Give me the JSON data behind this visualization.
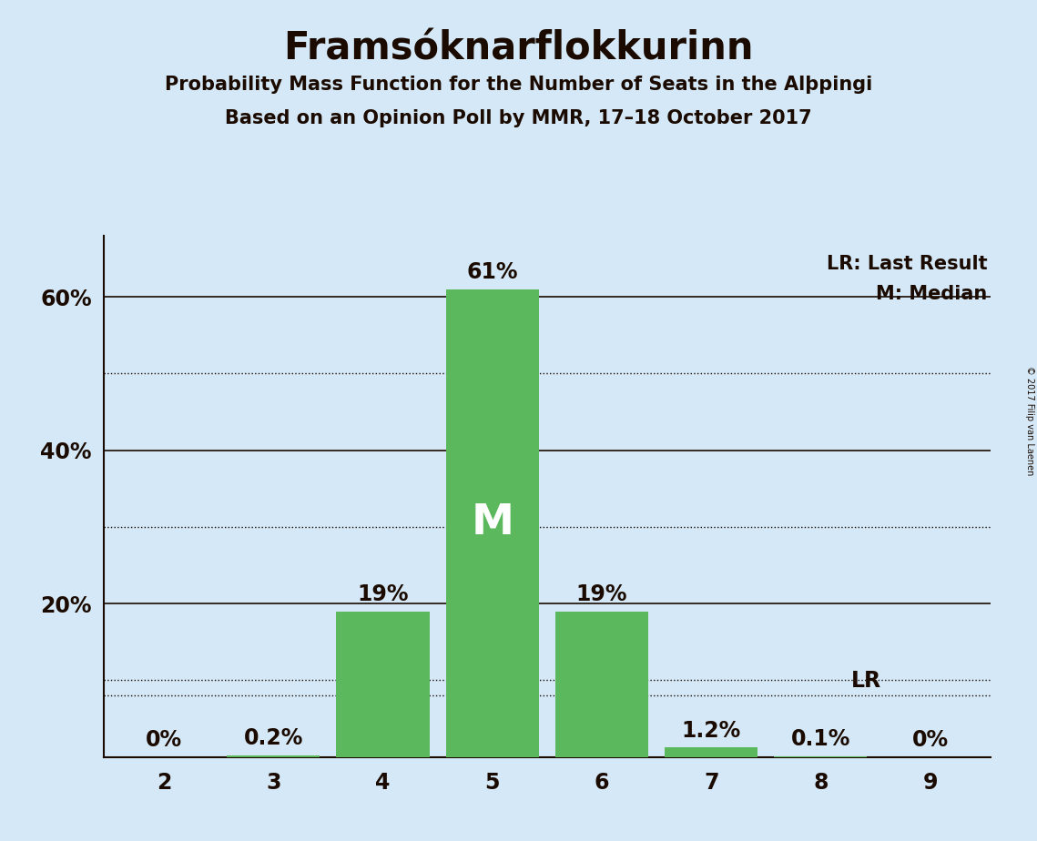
{
  "title": "Framsóknarflokkurinn",
  "subtitle1": "Probability Mass Function for the Number of Seats in the Alþpingi",
  "subtitle2": "Based on an Opinion Poll by MMR, 17–18 October 2017",
  "copyright": "© 2017 Filip van Laenen",
  "categories": [
    2,
    3,
    4,
    5,
    6,
    7,
    8,
    9
  ],
  "values": [
    0.0,
    0.2,
    19.0,
    61.0,
    19.0,
    1.2,
    0.1,
    0.0
  ],
  "bar_color": "#5cb85c",
  "background_color": "#d4e8f7",
  "text_color": "#1a0a00",
  "median_bar": 5,
  "last_result": 8,
  "ylim": [
    0,
    68
  ],
  "solid_lines": [
    20,
    40,
    60
  ],
  "dotted_lines": [
    10,
    30,
    50
  ],
  "lr_line_pct": 8.0,
  "ytick_positions": [
    20,
    40,
    60
  ],
  "ytick_labels": [
    "20%",
    "40%",
    "60%"
  ],
  "legend_lr": "LR: Last Result",
  "legend_m": "M: Median",
  "title_fontsize": 30,
  "subtitle_fontsize": 15,
  "tick_fontsize": 17,
  "label_fontsize": 17,
  "legend_fontsize": 15
}
